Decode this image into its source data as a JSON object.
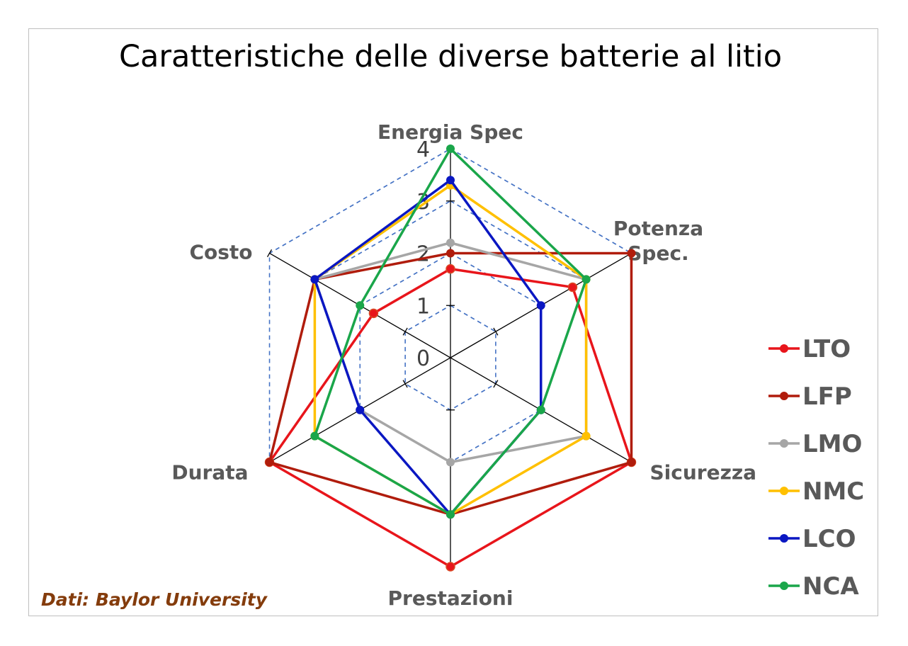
{
  "chart_data": {
    "type": "radar",
    "title": "Caratteristiche delle diverse batterie al litio",
    "axes": [
      "Energia Spec",
      "Potenza Spec.",
      "Sicurezza",
      "Prestazioni",
      "Durata",
      "Costo"
    ],
    "axis_label_lines": [
      [
        "Energia Spec"
      ],
      [
        "Potenza",
        "Spec."
      ],
      [
        "Sicurezza"
      ],
      [
        "Prestazioni"
      ],
      [
        "Durata"
      ],
      [
        "Costo"
      ]
    ],
    "range": [
      0,
      4
    ],
    "ticks": [
      0,
      1,
      2,
      3,
      4
    ],
    "series": [
      {
        "name": "LTO",
        "color": "#E8151B",
        "values": [
          1.7,
          2.7,
          4.0,
          4.0,
          4.0,
          1.7
        ]
      },
      {
        "name": "LFP",
        "color": "#B01C0C",
        "values": [
          2.0,
          4.0,
          4.0,
          3.0,
          4.0,
          3.0
        ]
      },
      {
        "name": "LMO",
        "color": "#A6A6A6",
        "values": [
          2.2,
          3.0,
          3.0,
          2.0,
          2.0,
          3.0
        ]
      },
      {
        "name": "NMC",
        "color": "#FFC000",
        "values": [
          3.3,
          3.0,
          3.0,
          3.0,
          3.0,
          3.0
        ]
      },
      {
        "name": "LCO",
        "color": "#0A17C2",
        "values": [
          3.4,
          2.0,
          2.0,
          3.0,
          2.0,
          3.0
        ]
      },
      {
        "name": "NCA",
        "color": "#1AA64A",
        "values": [
          4.0,
          3.0,
          2.0,
          3.0,
          3.0,
          2.0
        ]
      }
    ],
    "grid": "dashed",
    "legend_position": "right"
  },
  "source_note": "Dati: Baylor University"
}
